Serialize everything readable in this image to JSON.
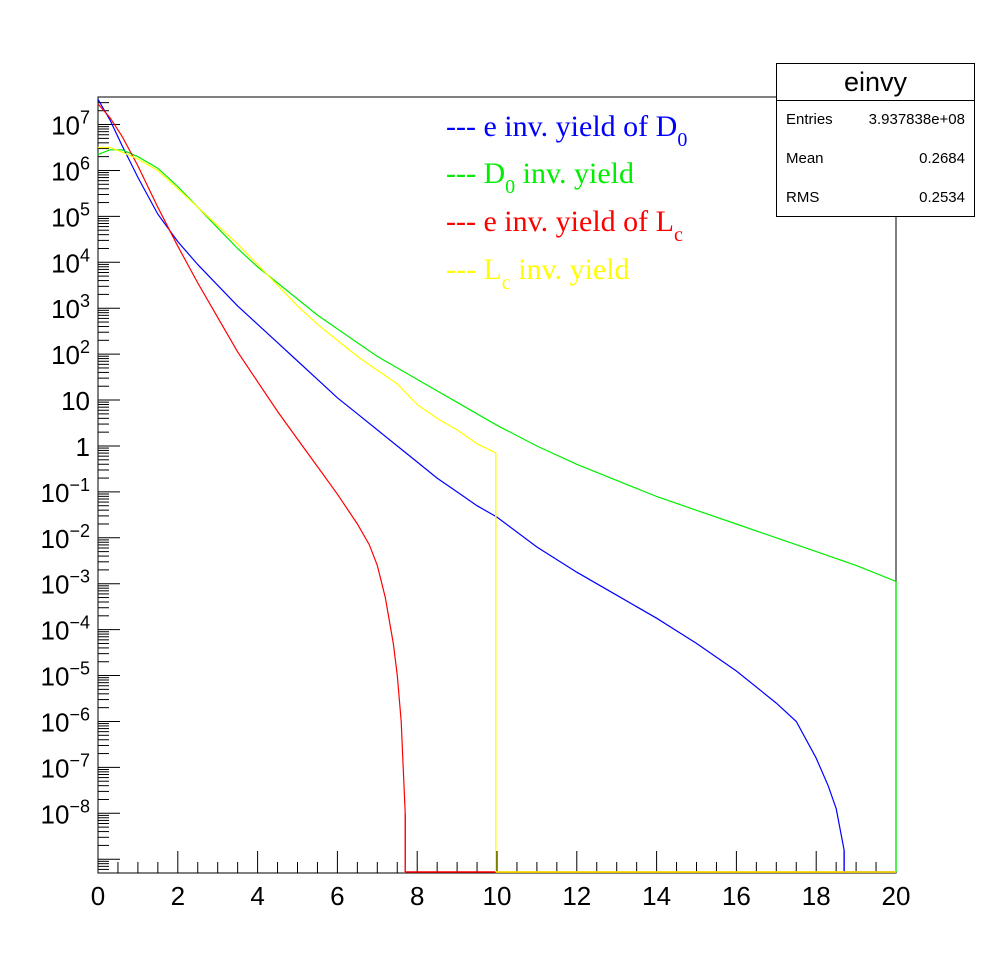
{
  "stats": {
    "title": "einvy",
    "rows": [
      {
        "key": "Entries",
        "value": "3.937838e+08"
      },
      {
        "key": "Mean",
        "value": "0.2684"
      },
      {
        "key": "RMS",
        "value": "0.2534"
      }
    ]
  },
  "chart_data": {
    "type": "line",
    "title": "",
    "xlabel": "",
    "ylabel": "",
    "xlim": [
      0,
      20
    ],
    "ylim_log10": [
      -9.3,
      7.6
    ],
    "yscale": "log",
    "grid": false,
    "legend_position": "top-center",
    "x_ticks": [
      "0",
      "2",
      "4",
      "6",
      "8",
      "10",
      "12",
      "14",
      "16",
      "18",
      "20"
    ],
    "y_ticks": [
      {
        "exp": 7,
        "base": "10",
        "sup": "7"
      },
      {
        "exp": 6,
        "base": "10",
        "sup": "6"
      },
      {
        "exp": 5,
        "base": "10",
        "sup": "5"
      },
      {
        "exp": 4,
        "base": "10",
        "sup": "4"
      },
      {
        "exp": 3,
        "base": "10",
        "sup": "3"
      },
      {
        "exp": 2,
        "base": "10",
        "sup": "2"
      },
      {
        "exp": 1,
        "base": "10",
        "sup": ""
      },
      {
        "exp": 0,
        "base": "1",
        "sup": ""
      },
      {
        "exp": -1,
        "base": "10",
        "sup": "−1"
      },
      {
        "exp": -2,
        "base": "10",
        "sup": "−2"
      },
      {
        "exp": -3,
        "base": "10",
        "sup": "−3"
      },
      {
        "exp": -4,
        "base": "10",
        "sup": "−4"
      },
      {
        "exp": -5,
        "base": "10",
        "sup": "−5"
      },
      {
        "exp": -6,
        "base": "10",
        "sup": "−6"
      },
      {
        "exp": -7,
        "base": "10",
        "sup": "−7"
      },
      {
        "exp": -8,
        "base": "10",
        "sup": "−8"
      }
    ],
    "series": [
      {
        "legend_main": "--- e inv. yield of D",
        "legend_sub": "0",
        "legend_tail": "",
        "color": "#0000ff",
        "x": [
          0,
          0.3,
          0.6,
          1,
          1.5,
          2,
          2.5,
          3,
          3.5,
          4,
          4.5,
          5,
          5.5,
          6,
          6.5,
          7,
          7.5,
          8,
          8.5,
          9,
          9.5,
          10,
          11,
          12,
          13,
          14,
          15,
          16,
          17,
          17.5,
          18,
          18.3,
          18.5,
          18.7
        ],
        "log10y": [
          7.55,
          7.1,
          6.55,
          5.85,
          5.05,
          4.45,
          3.95,
          3.5,
          3.05,
          2.65,
          2.25,
          1.85,
          1.45,
          1.05,
          0.7,
          0.35,
          0.0,
          -0.35,
          -0.7,
          -1.0,
          -1.3,
          -1.55,
          -2.2,
          -2.75,
          -3.25,
          -3.75,
          -4.3,
          -4.9,
          -5.6,
          -6.0,
          -6.8,
          -7.4,
          -7.9,
          -8.8
        ]
      },
      {
        "legend_main": "--- D",
        "legend_sub": "0",
        "legend_tail": " inv. yield",
        "color": "#00ee00",
        "x": [
          0,
          0.3,
          0.6,
          1,
          1.5,
          2,
          2.5,
          3,
          3.5,
          4,
          4.5,
          5,
          5.5,
          6,
          6.5,
          7,
          7.5,
          8,
          8.5,
          9,
          9.5,
          10,
          11,
          12,
          13,
          14,
          15,
          16,
          17,
          18,
          19,
          20
        ],
        "log10y": [
          6.35,
          6.45,
          6.45,
          6.3,
          6.05,
          5.65,
          5.2,
          4.75,
          4.3,
          3.9,
          3.55,
          3.2,
          2.85,
          2.55,
          2.25,
          1.95,
          1.7,
          1.45,
          1.2,
          0.95,
          0.7,
          0.45,
          0.0,
          -0.4,
          -0.75,
          -1.1,
          -1.4,
          -1.7,
          -2.0,
          -2.3,
          -2.6,
          -2.95
        ]
      },
      {
        "legend_main": "--- e inv. yield of L",
        "legend_sub": "c",
        "legend_tail": "",
        "color": "#ff0000",
        "x": [
          0,
          0.3,
          0.6,
          1,
          1.5,
          2,
          2.5,
          3,
          3.5,
          4,
          4.5,
          5,
          5.5,
          6,
          6.5,
          6.8,
          7.0,
          7.2,
          7.4,
          7.5,
          7.6,
          7.7
        ],
        "log10y": [
          7.45,
          7.15,
          6.75,
          6.1,
          5.2,
          4.35,
          3.55,
          2.8,
          2.05,
          1.4,
          0.75,
          0.15,
          -0.45,
          -1.05,
          -1.7,
          -2.15,
          -2.6,
          -3.3,
          -4.3,
          -5.0,
          -6.0,
          -8.0
        ]
      },
      {
        "legend_main": "--- L",
        "legend_sub": "c",
        "legend_tail": " inv. yield",
        "color": "#ffff00",
        "x": [
          0,
          0.3,
          0.6,
          1,
          1.5,
          2,
          2.5,
          3,
          3.5,
          4,
          4.5,
          5,
          5.5,
          6,
          6.5,
          7,
          7.5,
          8,
          8.5,
          9,
          9.5,
          9.97
        ],
        "log10y": [
          6.5,
          6.5,
          6.4,
          6.25,
          6.0,
          5.6,
          5.2,
          4.8,
          4.4,
          3.95,
          3.5,
          3.05,
          2.65,
          2.3,
          1.95,
          1.65,
          1.35,
          0.9,
          0.6,
          0.35,
          0.05,
          -0.15
        ]
      }
    ]
  }
}
